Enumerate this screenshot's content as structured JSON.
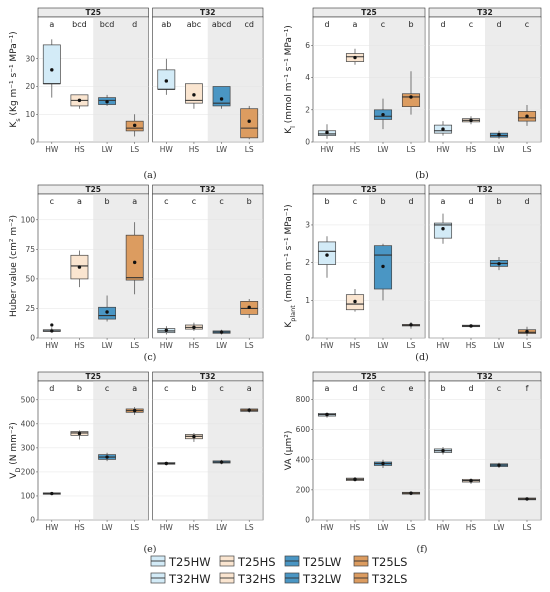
{
  "colors": {
    "HW": "#d3ebf7",
    "HS": "#fae5d0",
    "LW": "#4a96c4",
    "LS": "#dc9c60"
  },
  "legend": [
    {
      "label": "T25HW",
      "group": "HW"
    },
    {
      "label": "T25HS",
      "group": "HS"
    },
    {
      "label": "T25LW",
      "group": "LW"
    },
    {
      "label": "T25LS",
      "group": "LS"
    },
    {
      "label": "T32HW",
      "group": "HW"
    },
    {
      "label": "T32HS",
      "group": "HS"
    },
    {
      "label": "T32LW",
      "group": "LW"
    },
    {
      "label": "T32LS",
      "group": "LS"
    }
  ],
  "chart_data": [
    {
      "type": "box",
      "panel_label": "(a)",
      "ylabel_main": "K",
      "ylabel_sub": "s",
      "ylabel_unit": " (Kg m⁻¹ s⁻¹ MPa⁻¹)",
      "ylim": [
        0,
        40
      ],
      "ticks": [
        0,
        10,
        20,
        30
      ],
      "categories": [
        "HW",
        "HS",
        "LW",
        "LS"
      ],
      "facets": [
        {
          "name": "T25",
          "letters": [
            "a",
            "bcd",
            "bcd",
            "d"
          ],
          "boxes": [
            {
              "min": 16,
              "q1": 21,
              "median": 21,
              "q3": 35,
              "max": 37,
              "mean": 26
            },
            {
              "min": 12,
              "q1": 13,
              "median": 15,
              "q3": 17,
              "max": 17,
              "mean": 15
            },
            {
              "min": 13,
              "q1": 13.5,
              "median": 15,
              "q3": 16,
              "max": 17,
              "mean": 14.5
            },
            {
              "min": 2,
              "q1": 4,
              "median": 5,
              "q3": 7.5,
              "max": 10,
              "mean": 6
            }
          ]
        },
        {
          "name": "T32",
          "letters": [
            "ab",
            "abc",
            "abcd",
            "cd"
          ],
          "boxes": [
            {
              "min": 17,
              "q1": 19,
              "median": 19,
              "q3": 26,
              "max": 30,
              "mean": 22
            },
            {
              "min": 12,
              "q1": 14,
              "median": 15,
              "q3": 21,
              "max": 21,
              "mean": 17
            },
            {
              "min": 12,
              "q1": 13,
              "median": 14,
              "q3": 20,
              "max": 20,
              "mean": 15.5
            },
            {
              "min": 1,
              "q1": 1.5,
              "median": 5,
              "q3": 12,
              "max": 13,
              "mean": 7.5
            }
          ]
        }
      ]
    },
    {
      "type": "box",
      "panel_label": "(b)",
      "ylabel_main": "K",
      "ylabel_sub": "l",
      "ylabel_unit": " (mmol m⁻¹ s⁻¹ MPa⁻¹)",
      "ylim": [
        0,
        6.9
      ],
      "ticks": [
        0,
        2,
        4,
        6
      ],
      "categories": [
        "HW",
        "HS",
        "LW",
        "LS"
      ],
      "facets": [
        {
          "name": "T25",
          "letters": [
            "d",
            "a",
            "c",
            "b"
          ],
          "boxes": [
            {
              "min": 0.2,
              "q1": 0.4,
              "median": 0.5,
              "q3": 0.7,
              "max": 1.1,
              "mean": 0.6
            },
            {
              "min": 4.8,
              "q1": 5.0,
              "median": 5.3,
              "q3": 5.5,
              "max": 5.8,
              "mean": 5.25
            },
            {
              "min": 0.8,
              "q1": 1.4,
              "median": 1.6,
              "q3": 2.0,
              "max": 2.7,
              "mean": 1.7
            },
            {
              "min": 1.7,
              "q1": 2.2,
              "median": 2.8,
              "q3": 3.0,
              "max": 4.4,
              "mean": 2.8
            }
          ]
        },
        {
          "name": "T32",
          "letters": [
            "d",
            "c",
            "d",
            "c"
          ],
          "boxes": [
            {
              "min": 0.4,
              "q1": 0.55,
              "median": 0.7,
              "q3": 1.05,
              "max": 1.3,
              "mean": 0.8
            },
            {
              "min": 1.1,
              "q1": 1.25,
              "median": 1.35,
              "q3": 1.45,
              "max": 1.6,
              "mean": 1.35
            },
            {
              "min": 0.2,
              "q1": 0.3,
              "median": 0.4,
              "q3": 0.55,
              "max": 0.7,
              "mean": 0.45
            },
            {
              "min": 1.0,
              "q1": 1.3,
              "median": 1.5,
              "q3": 1.9,
              "max": 2.3,
              "mean": 1.6
            }
          ]
        }
      ]
    },
    {
      "type": "box",
      "panel_label": "(c)",
      "ylabel_main": "Huber value (cm² m⁻²)",
      "ylabel_sub": "",
      "ylabel_unit": "",
      "ylim": [
        0,
        110
      ],
      "ticks": [
        0,
        25,
        50,
        75,
        100
      ],
      "categories": [
        "HW",
        "HS",
        "LW",
        "LS"
      ],
      "facets": [
        {
          "name": "T25",
          "letters": [
            "c",
            "a",
            "b",
            "a"
          ],
          "boxes": [
            {
              "min": 5,
              "q1": 5.5,
              "median": 6,
              "q3": 7,
              "max": 9,
              "mean": 6,
              "outliers": [
                11
              ]
            },
            {
              "min": 43,
              "q1": 50,
              "median": 61,
              "q3": 70,
              "max": 74,
              "mean": 60
            },
            {
              "min": 14,
              "q1": 16,
              "median": 19,
              "q3": 26,
              "max": 36,
              "mean": 22
            },
            {
              "min": 37,
              "q1": 49,
              "median": 51,
              "q3": 87,
              "max": 98,
              "mean": 64
            }
          ]
        },
        {
          "name": "T32",
          "letters": [
            "c",
            "c",
            "c",
            "b"
          ],
          "boxes": [
            {
              "min": 3,
              "q1": 4.5,
              "median": 6,
              "q3": 8,
              "max": 10,
              "mean": 6.5
            },
            {
              "min": 6,
              "q1": 7.5,
              "median": 9,
              "q3": 11,
              "max": 13,
              "mean": 9
            },
            {
              "min": 3,
              "q1": 4,
              "median": 5,
              "q3": 6,
              "max": 7,
              "mean": 5
            },
            {
              "min": 17,
              "q1": 20,
              "median": 25,
              "q3": 31,
              "max": 33,
              "mean": 26
            }
          ]
        }
      ]
    },
    {
      "type": "box",
      "panel_label": "(d)",
      "ylabel_main": "K",
      "ylabel_sub": "plant",
      "ylabel_unit": " (mmol m⁻¹ s⁻¹ MPa⁻¹)",
      "ylim": [
        0,
        3.45
      ],
      "ticks": [
        0,
        1,
        2,
        3
      ],
      "categories": [
        "HW",
        "HS",
        "LW",
        "LS"
      ],
      "facets": [
        {
          "name": "T25",
          "letters": [
            "b",
            "c",
            "b",
            "d"
          ],
          "boxes": [
            {
              "min": 1.6,
              "q1": 1.95,
              "median": 2.3,
              "q3": 2.55,
              "max": 2.7,
              "mean": 2.2
            },
            {
              "min": 0.7,
              "q1": 0.75,
              "median": 0.9,
              "q3": 1.15,
              "max": 1.3,
              "mean": 0.97
            },
            {
              "min": 1.0,
              "q1": 1.3,
              "median": 2.2,
              "q3": 2.45,
              "max": 2.5,
              "mean": 1.9
            },
            {
              "min": 0.25,
              "q1": 0.32,
              "median": 0.34,
              "q3": 0.36,
              "max": 0.42,
              "mean": 0.35
            }
          ]
        },
        {
          "name": "T32",
          "letters": [
            "a",
            "d",
            "b",
            "d"
          ],
          "boxes": [
            {
              "min": 2.5,
              "q1": 2.65,
              "median": 3.0,
              "q3": 3.05,
              "max": 3.3,
              "mean": 2.9
            },
            {
              "min": 0.28,
              "q1": 0.3,
              "median": 0.32,
              "q3": 0.34,
              "max": 0.36,
              "mean": 0.32
            },
            {
              "min": 1.8,
              "q1": 1.9,
              "median": 1.98,
              "q3": 2.06,
              "max": 2.15,
              "mean": 1.97
            },
            {
              "min": 0.05,
              "q1": 0.12,
              "median": 0.15,
              "q3": 0.22,
              "max": 0.3,
              "mean": 0.17
            }
          ]
        }
      ]
    },
    {
      "type": "box",
      "panel_label": "(e)",
      "ylabel_main": "V",
      "ylabel_sub": "D",
      "ylabel_unit": " (N mm⁻²)",
      "ylim": [
        0,
        520
      ],
      "ticks": [
        0,
        100,
        200,
        300,
        400,
        500
      ],
      "categories": [
        "HW",
        "HS",
        "LW",
        "LS"
      ],
      "facets": [
        {
          "name": "T25",
          "letters": [
            "d",
            "b",
            "c",
            "a"
          ],
          "boxes": [
            {
              "min": 104,
              "q1": 107,
              "median": 110,
              "q3": 113,
              "max": 116,
              "mean": 110
            },
            {
              "min": 335,
              "q1": 352,
              "median": 362,
              "q3": 368,
              "max": 373,
              "mean": 360
            },
            {
              "min": 245,
              "q1": 252,
              "median": 262,
              "q3": 272,
              "max": 280,
              "mean": 262
            },
            {
              "min": 437,
              "q1": 448,
              "median": 455,
              "q3": 462,
              "max": 470,
              "mean": 455
            }
          ]
        },
        {
          "name": "T32",
          "letters": [
            "c",
            "b",
            "c",
            "a"
          ],
          "boxes": [
            {
              "min": 228,
              "q1": 232,
              "median": 235,
              "q3": 239,
              "max": 242,
              "mean": 235
            },
            {
              "min": 325,
              "q1": 338,
              "median": 348,
              "q3": 356,
              "max": 362,
              "mean": 347
            },
            {
              "min": 232,
              "q1": 237,
              "median": 241,
              "q3": 246,
              "max": 250,
              "mean": 241
            },
            {
              "min": 447,
              "q1": 452,
              "median": 457,
              "q3": 462,
              "max": 466,
              "mean": 457
            }
          ]
        }
      ]
    },
    {
      "type": "box",
      "panel_label": "(f)",
      "ylabel_main": "VA (μm²)",
      "ylabel_sub": "",
      "ylabel_unit": "",
      "ylim": [
        0,
        830
      ],
      "ticks": [
        0,
        200,
        400,
        600,
        800
      ],
      "categories": [
        "HW",
        "HS",
        "LW",
        "LS"
      ],
      "facets": [
        {
          "name": "T25",
          "letters": [
            "a",
            "d",
            "c",
            "e"
          ],
          "boxes": [
            {
              "min": 680,
              "q1": 690,
              "median": 700,
              "q3": 708,
              "max": 715,
              "mean": 700
            },
            {
              "min": 255,
              "q1": 262,
              "median": 270,
              "q3": 278,
              "max": 285,
              "mean": 270
            },
            {
              "min": 345,
              "q1": 362,
              "median": 375,
              "q3": 385,
              "max": 400,
              "mean": 375
            },
            {
              "min": 165,
              "q1": 172,
              "median": 178,
              "q3": 184,
              "max": 190,
              "mean": 178
            }
          ]
        },
        {
          "name": "T32",
          "letters": [
            "b",
            "d",
            "c",
            "f"
          ],
          "boxes": [
            {
              "min": 435,
              "q1": 448,
              "median": 460,
              "q3": 472,
              "max": 485,
              "mean": 460
            },
            {
              "min": 240,
              "q1": 252,
              "median": 262,
              "q3": 270,
              "max": 276,
              "mean": 260
            },
            {
              "min": 345,
              "q1": 355,
              "median": 365,
              "q3": 373,
              "max": 380,
              "mean": 364
            },
            {
              "min": 128,
              "q1": 134,
              "median": 140,
              "q3": 146,
              "max": 150,
              "mean": 140
            }
          ]
        }
      ]
    }
  ]
}
